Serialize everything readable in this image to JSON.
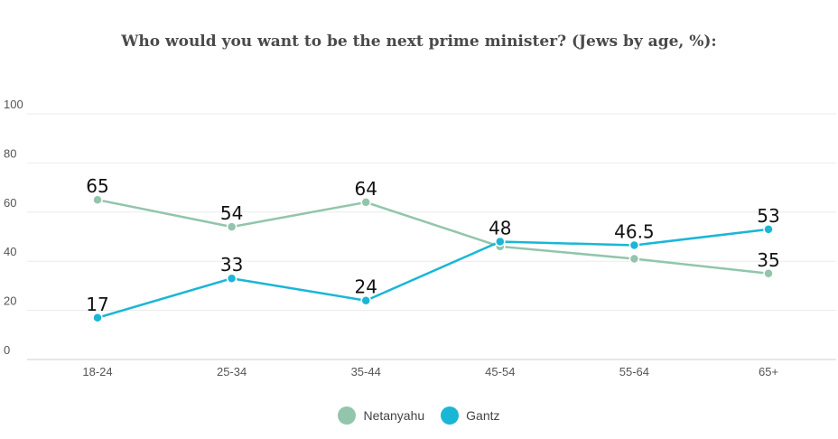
{
  "chart_data": {
    "type": "line",
    "title": "Who would you want to be the next prime minister? (Jews by age, %):",
    "categories": [
      "18-24",
      "25-34",
      "35-44",
      "45-54",
      "55-64",
      "65+"
    ],
    "ylim": [
      0,
      100
    ],
    "yticks": [
      0,
      20,
      40,
      60,
      80,
      100
    ],
    "grid": true,
    "legend_position": "bottom",
    "series": [
      {
        "name": "Netanyahu",
        "color": "#92c5ab",
        "values": [
          65,
          54,
          64,
          46,
          41,
          35
        ],
        "labels": [
          "65",
          "54",
          "64",
          "",
          "",
          "35"
        ]
      },
      {
        "name": "Gantz",
        "color": "#1ab6d6",
        "values": [
          17,
          33,
          24,
          48,
          46.5,
          53
        ],
        "labels": [
          "17",
          "33",
          "24",
          "48",
          "46.5",
          "53"
        ]
      }
    ]
  }
}
